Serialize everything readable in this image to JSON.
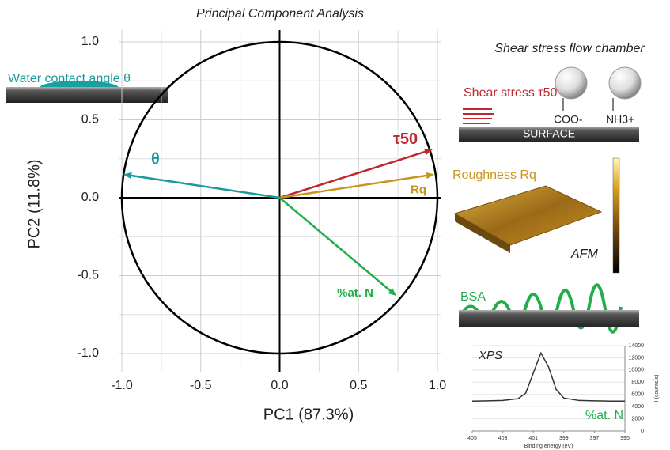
{
  "chart_data": [
    {
      "type": "biplot",
      "title": "Principal Component Analysis",
      "x_label": "PC1 (87.3%)",
      "y_label": "PC2 (11.8%)",
      "xlim": [
        -1,
        1
      ],
      "ylim": [
        -1,
        1
      ],
      "xticks": [
        {
          "value": -1,
          "label": "-1.0"
        },
        -0.5,
        {
          "value": 0,
          "label": "0.0"
        },
        0.5,
        {
          "value": 1,
          "label": "1.0"
        }
      ],
      "yticks": [
        {
          "value": -1,
          "label": "-1.0"
        },
        -0.5,
        {
          "value": 0,
          "label": "0.0"
        },
        0.5,
        {
          "value": 1,
          "label": "1.0"
        }
      ],
      "xminor": [
        -0.75,
        -0.25,
        0.25,
        0.75
      ],
      "yminor": [
        -0.75,
        -0.25,
        0.25,
        0.75
      ],
      "grid": true,
      "unit_circle": true,
      "vectors": [
        {
          "name": "θ",
          "color": "#1a9a9a",
          "x": -0.99,
          "y": 0.15
        },
        {
          "name": "τ50",
          "color": "#c0282d",
          "x": 0.97,
          "y": 0.31
        },
        {
          "name": "Rq",
          "color": "#c8961e",
          "x": 0.98,
          "y": 0.15
        },
        {
          "name": "%at. N",
          "color": "#1fae4a",
          "x": 0.74,
          "y": -0.63
        }
      ],
      "annotations": [
        "Water contact angle θ",
        "Shear stress flow chamber",
        "Shear stress τ50",
        "COO-",
        "NH3+",
        "SURFACE",
        "Roughness Rq",
        "AFM",
        "BSA"
      ]
    },
    {
      "type": "line",
      "title": "XPS",
      "annotation": "%at. N",
      "x_label": "Binding energy (eV)",
      "y_label": "I (counts/s)",
      "x": [
        405,
        404,
        403,
        402,
        401.5,
        401,
        400.5,
        400,
        399.5,
        399,
        398,
        397,
        396,
        395
      ],
      "values": [
        4900,
        4950,
        5000,
        5300,
        6200,
        9500,
        12800,
        10500,
        6800,
        5400,
        5000,
        4950,
        4900,
        4900
      ],
      "color": "#333333",
      "xlim": [
        405,
        395
      ],
      "ylim": [
        0,
        14000
      ],
      "xticks": [
        405,
        403,
        401,
        399,
        397,
        395
      ],
      "yticks": [
        0,
        2000,
        4000,
        6000,
        8000,
        10000,
        12000,
        14000
      ]
    }
  ]
}
